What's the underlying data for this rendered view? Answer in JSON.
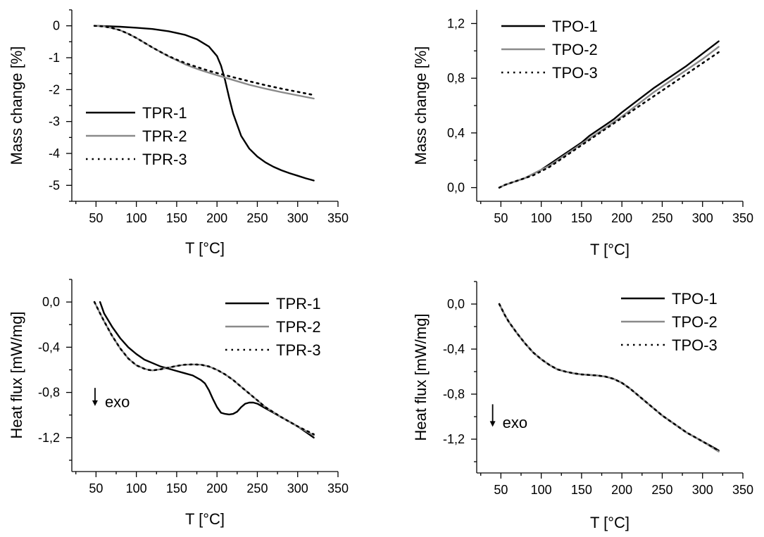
{
  "chart_data": [
    {
      "type": "line",
      "ylabel": "Mass change [%]",
      "xlabel": "T [°C]",
      "xlim": [
        20,
        350
      ],
      "ylim": [
        -5.5,
        0.5
      ],
      "xticks": [
        50,
        100,
        150,
        200,
        250,
        300,
        350
      ],
      "yticks": [
        0,
        -1,
        -2,
        -3,
        -4,
        -5
      ],
      "ytick_labels": [
        "0",
        "-1",
        "-2",
        "-3",
        "-4",
        "-5"
      ],
      "grid": false,
      "legend_position": "bottom-left",
      "series": [
        {
          "name": "TPR-1",
          "color": "#000000",
          "dash": "solid",
          "x": [
            48,
            60,
            80,
            100,
            120,
            140,
            160,
            175,
            190,
            200,
            205,
            210,
            215,
            220,
            230,
            240,
            250,
            260,
            270,
            280,
            290,
            300,
            310,
            320
          ],
          "y": [
            0,
            -0.01,
            -0.03,
            -0.06,
            -0.1,
            -0.17,
            -0.28,
            -0.42,
            -0.65,
            -0.95,
            -1.25,
            -1.7,
            -2.25,
            -2.75,
            -3.45,
            -3.85,
            -4.1,
            -4.28,
            -4.42,
            -4.53,
            -4.62,
            -4.7,
            -4.78,
            -4.85
          ]
        },
        {
          "name": "TPR-2",
          "color": "#8a8a8a",
          "dash": "solid",
          "x": [
            48,
            60,
            70,
            80,
            90,
            100,
            110,
            120,
            130,
            140,
            150,
            160,
            170,
            180,
            190,
            200,
            220,
            240,
            260,
            280,
            300,
            320
          ],
          "y": [
            0,
            -0.02,
            -0.07,
            -0.14,
            -0.25,
            -0.38,
            -0.53,
            -0.68,
            -0.82,
            -0.96,
            -1.08,
            -1.2,
            -1.3,
            -1.39,
            -1.47,
            -1.55,
            -1.7,
            -1.85,
            -1.97,
            -2.08,
            -2.18,
            -2.28
          ]
        },
        {
          "name": "TPR-3",
          "color": "#000000",
          "dash": "dotted",
          "x": [
            48,
            60,
            70,
            80,
            90,
            100,
            110,
            120,
            130,
            140,
            150,
            160,
            170,
            180,
            190,
            200,
            220,
            240,
            260,
            280,
            300,
            320
          ],
          "y": [
            0,
            -0.02,
            -0.07,
            -0.14,
            -0.25,
            -0.38,
            -0.53,
            -0.68,
            -0.82,
            -0.95,
            -1.06,
            -1.16,
            -1.25,
            -1.33,
            -1.41,
            -1.48,
            -1.61,
            -1.74,
            -1.86,
            -1.97,
            -2.07,
            -2.17
          ]
        }
      ]
    },
    {
      "type": "line",
      "ylabel": "Mass change [%]",
      "xlabel": "T [°C]",
      "xlim": [
        20,
        350
      ],
      "ylim": [
        -0.1,
        1.3
      ],
      "xticks": [
        50,
        100,
        150,
        200,
        250,
        300,
        350
      ],
      "yticks": [
        0,
        0.4,
        0.8,
        1.2
      ],
      "ytick_labels": [
        "0,0",
        "0,4",
        "0,8",
        "1,2"
      ],
      "grid": false,
      "legend_position": "top-left",
      "series": [
        {
          "name": "TPO-1",
          "color": "#000000",
          "dash": "solid",
          "x": [
            48,
            55,
            60,
            70,
            80,
            90,
            100,
            110,
            120,
            130,
            140,
            150,
            160,
            170,
            180,
            190,
            200,
            220,
            240,
            260,
            280,
            300,
            320
          ],
          "y": [
            0,
            0.02,
            0.03,
            0.05,
            0.07,
            0.1,
            0.13,
            0.17,
            0.21,
            0.25,
            0.29,
            0.33,
            0.38,
            0.42,
            0.46,
            0.5,
            0.55,
            0.64,
            0.73,
            0.81,
            0.89,
            0.98,
            1.07
          ]
        },
        {
          "name": "TPO-2",
          "color": "#8a8a8a",
          "dash": "solid",
          "x": [
            48,
            55,
            60,
            70,
            80,
            90,
            100,
            110,
            120,
            130,
            140,
            150,
            160,
            170,
            180,
            190,
            200,
            220,
            240,
            260,
            280,
            300,
            320
          ],
          "y": [
            0,
            0.02,
            0.03,
            0.05,
            0.07,
            0.1,
            0.13,
            0.16,
            0.2,
            0.24,
            0.28,
            0.32,
            0.36,
            0.4,
            0.44,
            0.48,
            0.52,
            0.61,
            0.7,
            0.78,
            0.86,
            0.94,
            1.03
          ]
        },
        {
          "name": "TPO-3",
          "color": "#000000",
          "dash": "dotted",
          "x": [
            48,
            55,
            60,
            70,
            80,
            90,
            100,
            110,
            120,
            130,
            140,
            150,
            160,
            170,
            180,
            190,
            200,
            220,
            240,
            260,
            280,
            300,
            320
          ],
          "y": [
            0,
            0.02,
            0.03,
            0.05,
            0.07,
            0.09,
            0.12,
            0.15,
            0.19,
            0.23,
            0.27,
            0.31,
            0.35,
            0.39,
            0.43,
            0.47,
            0.51,
            0.59,
            0.67,
            0.75,
            0.83,
            0.91,
            0.99
          ]
        }
      ]
    },
    {
      "type": "line",
      "ylabel": "Heat flux [mW/mg]",
      "xlabel": "T [°C]",
      "xlim": [
        20,
        350
      ],
      "ylim": [
        -1.5,
        0.2
      ],
      "xticks": [
        50,
        100,
        150,
        200,
        250,
        300,
        350
      ],
      "yticks": [
        0,
        -0.4,
        -0.8,
        -1.2
      ],
      "ytick_labels": [
        "0,0",
        "-0,4",
        "-0,8",
        "-1,2"
      ],
      "grid": false,
      "legend_position": "top-right",
      "annotation": {
        "text": "exo",
        "x": 54,
        "y": -0.88,
        "arrow_from_y": -0.76,
        "arrow_to_y": -0.92
      },
      "series": [
        {
          "name": "TPR-1",
          "color": "#000000",
          "dash": "solid",
          "x": [
            55,
            60,
            70,
            80,
            90,
            100,
            110,
            120,
            130,
            140,
            150,
            160,
            170,
            180,
            185,
            190,
            195,
            200,
            205,
            210,
            215,
            220,
            225,
            230,
            235,
            240,
            245,
            250,
            260,
            270,
            280,
            290,
            300,
            310,
            320
          ],
          "y": [
            0,
            -0.1,
            -0.22,
            -0.32,
            -0.4,
            -0.46,
            -0.51,
            -0.54,
            -0.57,
            -0.59,
            -0.61,
            -0.63,
            -0.65,
            -0.69,
            -0.72,
            -0.78,
            -0.86,
            -0.93,
            -0.98,
            -0.99,
            -0.995,
            -0.99,
            -0.97,
            -0.93,
            -0.9,
            -0.89,
            -0.89,
            -0.9,
            -0.94,
            -0.98,
            -1.02,
            -1.06,
            -1.1,
            -1.15,
            -1.2
          ]
        },
        {
          "name": "TPR-2",
          "color": "#8a8a8a",
          "dash": "solid",
          "x": [
            48,
            55,
            60,
            70,
            80,
            90,
            100,
            110,
            115,
            120,
            125,
            130,
            140,
            150,
            160,
            170,
            180,
            190,
            200,
            210,
            220,
            230,
            240,
            250,
            260,
            280,
            300,
            320
          ],
          "y": [
            0,
            -0.1,
            -0.17,
            -0.3,
            -0.41,
            -0.5,
            -0.56,
            -0.59,
            -0.6,
            -0.605,
            -0.6,
            -0.595,
            -0.58,
            -0.565,
            -0.555,
            -0.552,
            -0.555,
            -0.57,
            -0.6,
            -0.64,
            -0.69,
            -0.75,
            -0.81,
            -0.87,
            -0.93,
            -1.02,
            -1.1,
            -1.18
          ]
        },
        {
          "name": "TPR-3",
          "color": "#000000",
          "dash": "dotted",
          "x": [
            48,
            55,
            60,
            70,
            80,
            90,
            100,
            110,
            115,
            120,
            125,
            130,
            140,
            150,
            160,
            170,
            180,
            190,
            200,
            210,
            220,
            230,
            240,
            250,
            260,
            280,
            300,
            320
          ],
          "y": [
            0,
            -0.1,
            -0.17,
            -0.3,
            -0.41,
            -0.5,
            -0.56,
            -0.59,
            -0.6,
            -0.605,
            -0.6,
            -0.595,
            -0.58,
            -0.565,
            -0.555,
            -0.552,
            -0.555,
            -0.57,
            -0.6,
            -0.64,
            -0.69,
            -0.75,
            -0.81,
            -0.87,
            -0.93,
            -1.02,
            -1.1,
            -1.17
          ]
        }
      ]
    },
    {
      "type": "line",
      "ylabel": "Heat flux [mW/mg]",
      "xlabel": "T [°C]",
      "xlim": [
        20,
        350
      ],
      "ylim": [
        -1.5,
        0.2
      ],
      "xticks": [
        50,
        100,
        150,
        200,
        250,
        300,
        350
      ],
      "yticks": [
        0,
        -0.4,
        -0.8,
        -1.2
      ],
      "ytick_labels": [
        "0,0",
        "-0,4",
        "-0,8",
        "-1,2"
      ],
      "grid": false,
      "legend_position": "top-right",
      "annotation": {
        "text": "exo",
        "x": 45,
        "y": -1.05,
        "arrow_from_y": -0.89,
        "arrow_to_y": -1.09
      },
      "series": [
        {
          "name": "TPO-1",
          "color": "#000000",
          "dash": "solid",
          "x": [
            48,
            55,
            60,
            70,
            80,
            90,
            100,
            110,
            120,
            130,
            140,
            150,
            160,
            170,
            180,
            190,
            200,
            210,
            220,
            230,
            240,
            250,
            260,
            270,
            280,
            290,
            300,
            310,
            320
          ],
          "y": [
            0,
            -0.1,
            -0.16,
            -0.26,
            -0.35,
            -0.43,
            -0.49,
            -0.54,
            -0.58,
            -0.6,
            -0.615,
            -0.625,
            -0.63,
            -0.635,
            -0.645,
            -0.665,
            -0.7,
            -0.75,
            -0.81,
            -0.87,
            -0.93,
            -0.99,
            -1.04,
            -1.09,
            -1.14,
            -1.18,
            -1.22,
            -1.26,
            -1.3
          ]
        },
        {
          "name": "TPO-2",
          "color": "#8a8a8a",
          "dash": "solid",
          "x": [
            48,
            55,
            60,
            70,
            80,
            90,
            100,
            110,
            120,
            130,
            140,
            150,
            160,
            170,
            180,
            190,
            200,
            210,
            220,
            230,
            240,
            250,
            260,
            270,
            280,
            290,
            300,
            310,
            320
          ],
          "y": [
            0,
            -0.1,
            -0.16,
            -0.26,
            -0.35,
            -0.43,
            -0.49,
            -0.54,
            -0.58,
            -0.6,
            -0.615,
            -0.625,
            -0.63,
            -0.635,
            -0.645,
            -0.665,
            -0.7,
            -0.75,
            -0.81,
            -0.87,
            -0.93,
            -0.99,
            -1.04,
            -1.09,
            -1.14,
            -1.18,
            -1.22,
            -1.265,
            -1.31
          ]
        },
        {
          "name": "TPO-3",
          "color": "#000000",
          "dash": "dotted",
          "x": [
            48,
            55,
            60,
            70,
            80,
            90,
            100,
            110,
            120,
            130,
            140,
            150,
            160,
            170,
            180,
            190,
            200,
            210,
            220,
            230,
            240,
            250,
            260,
            270,
            280,
            290,
            300,
            310,
            320
          ],
          "y": [
            0,
            -0.1,
            -0.16,
            -0.26,
            -0.35,
            -0.43,
            -0.49,
            -0.54,
            -0.58,
            -0.6,
            -0.615,
            -0.625,
            -0.63,
            -0.635,
            -0.645,
            -0.665,
            -0.7,
            -0.75,
            -0.81,
            -0.87,
            -0.93,
            -0.99,
            -1.04,
            -1.09,
            -1.14,
            -1.18,
            -1.22,
            -1.26,
            -1.3
          ]
        }
      ]
    }
  ]
}
